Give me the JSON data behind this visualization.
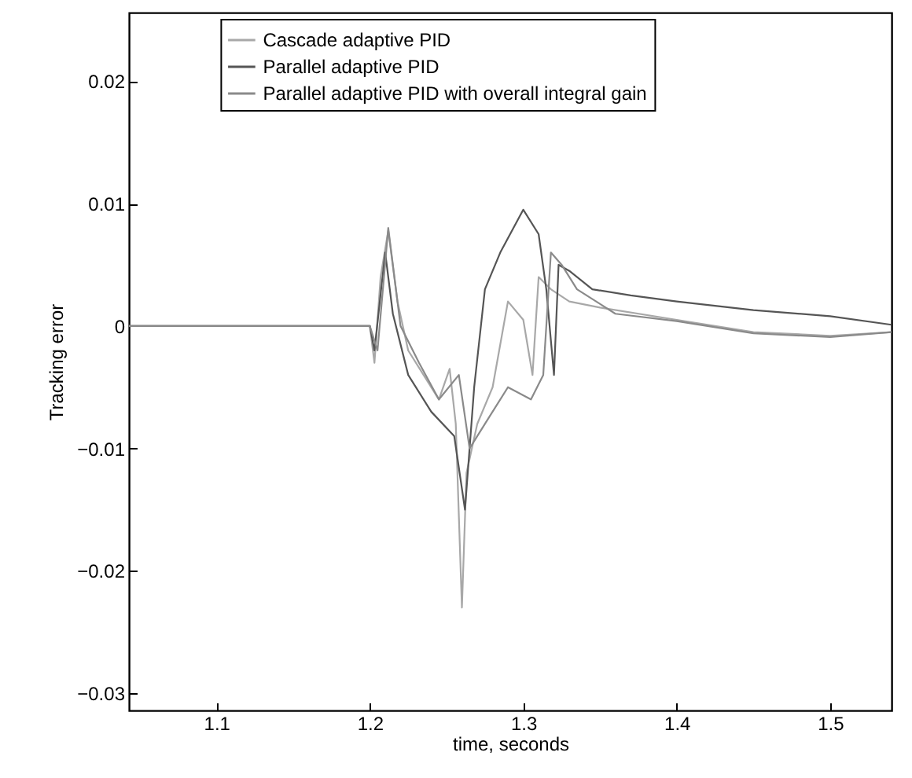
{
  "chart_data": {
    "type": "line",
    "xlabel": "time, seconds",
    "ylabel": "Tracking error",
    "xlim": [
      1.043,
      1.54
    ],
    "xticks": [
      1.1,
      1.2,
      1.3,
      1.4,
      1.5
    ],
    "ylim": [
      -0.0314,
      0.0256
    ],
    "yticks": [
      -0.03,
      -0.02,
      -0.01,
      0,
      0.01,
      0.02
    ],
    "grid": false,
    "legend": "top",
    "line_style": "solid",
    "marker": "none",
    "series": [
      {
        "name": "Cascade adaptive PID",
        "color": "#a8a8a8",
        "x": [
          1.043,
          1.2,
          1.203,
          1.207,
          1.212,
          1.218,
          1.225,
          1.235,
          1.245,
          1.252,
          1.256,
          1.26,
          1.263,
          1.27,
          1.28,
          1.29,
          1.3,
          1.306,
          1.31,
          1.318,
          1.33,
          1.35,
          1.4,
          1.45,
          1.5,
          1.54
        ],
        "values": [
          0,
          0,
          -0.003,
          0.004,
          0.0078,
          0.002,
          -0.002,
          -0.004,
          -0.006,
          -0.0035,
          -0.008,
          -0.023,
          -0.012,
          -0.008,
          -0.005,
          0.002,
          0.0005,
          -0.004,
          0.004,
          0.003,
          0.002,
          0.0015,
          0.0005,
          -0.0005,
          -0.0008,
          -0.0005
        ]
      },
      {
        "name": "Parallel adaptive PID",
        "color": "#555555",
        "x": [
          1.043,
          1.2,
          1.203,
          1.21,
          1.215,
          1.225,
          1.24,
          1.255,
          1.262,
          1.268,
          1.275,
          1.285,
          1.3,
          1.31,
          1.315,
          1.32,
          1.323,
          1.33,
          1.345,
          1.37,
          1.4,
          1.45,
          1.5,
          1.54
        ],
        "values": [
          0,
          0,
          -0.002,
          0.006,
          0.001,
          -0.004,
          -0.007,
          -0.009,
          -0.015,
          -0.005,
          0.003,
          0.006,
          0.0095,
          0.0075,
          0.003,
          -0.004,
          0.005,
          0.0045,
          0.003,
          0.0025,
          0.002,
          0.0013,
          0.0008,
          0.0001
        ]
      },
      {
        "name": "Parallel adaptive PID with overall integral gain",
        "color": "#8a8a8a",
        "x": [
          1.043,
          1.2,
          1.205,
          1.212,
          1.22,
          1.232,
          1.245,
          1.258,
          1.265,
          1.275,
          1.29,
          1.305,
          1.313,
          1.318,
          1.325,
          1.335,
          1.36,
          1.4,
          1.45,
          1.5,
          1.54
        ],
        "values": [
          0,
          0,
          -0.002,
          0.008,
          0.0,
          -0.003,
          -0.006,
          -0.004,
          -0.01,
          -0.008,
          -0.005,
          -0.006,
          -0.004,
          0.006,
          0.005,
          0.003,
          0.001,
          0.0004,
          -0.0006,
          -0.0009,
          -0.0005
        ]
      }
    ]
  }
}
